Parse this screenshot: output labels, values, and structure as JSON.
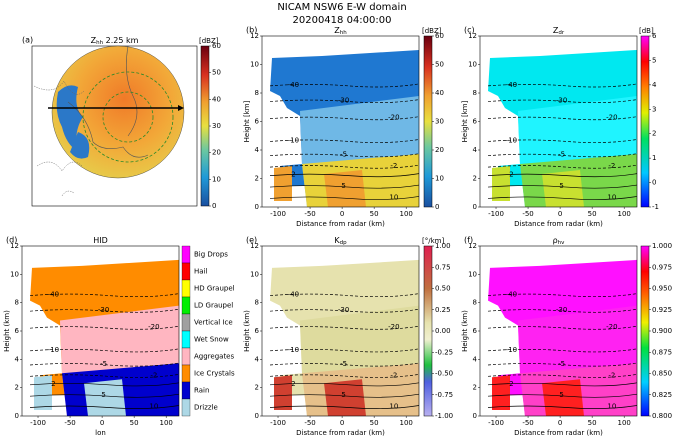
{
  "title": "NICAM NSW6 E-W domain",
  "subtitle": "20200418 04:00:00",
  "chart_data": [
    {
      "type": "map",
      "label": "(a)",
      "title": "Z",
      "title_sub": "hh",
      "title_rest": " 2.25 km",
      "colorbar": {
        "unit": "[dBZ]",
        "lim": [
          0,
          60
        ],
        "ticks": [
          0,
          10,
          20,
          30,
          40,
          50,
          60
        ]
      }
    },
    {
      "type": "cross-section",
      "label": "(b)",
      "title": "Z",
      "title_sub": "hh",
      "xlabel": "Distance from radar (km)",
      "ylabel": "Height [km]",
      "xlim": [
        -125,
        120
      ],
      "xticks": [
        -100,
        -50,
        0,
        50,
        100
      ],
      "ylim": [
        0,
        12
      ],
      "yticks": [
        0,
        2,
        4,
        6,
        8,
        10,
        12
      ],
      "contour_labels": [
        -40,
        -30,
        -20,
        -10,
        -5,
        -2,
        2,
        5,
        10
      ],
      "colorbar": {
        "unit": "[dBZ]",
        "lim": [
          0,
          60
        ],
        "ticks": [
          0,
          10,
          20,
          30,
          40,
          50,
          60
        ]
      }
    },
    {
      "type": "cross-section",
      "label": "(c)",
      "title": "Z",
      "title_sub": "dr",
      "xlabel": "Distance from radar (km)",
      "ylabel": "Height [km]",
      "xlim": [
        -125,
        120
      ],
      "xticks": [
        -100,
        -50,
        0,
        50,
        100
      ],
      "ylim": [
        0,
        12
      ],
      "yticks": [
        0,
        2,
        4,
        6,
        8,
        10,
        12
      ],
      "contour_labels": [
        -40,
        -30,
        -20,
        -10,
        -5,
        -2,
        2,
        5,
        10
      ],
      "colorbar": {
        "unit": "[dB]",
        "lim": [
          -1,
          6
        ],
        "ticks": [
          -1,
          0,
          1,
          2,
          3,
          4,
          5,
          6
        ]
      }
    },
    {
      "type": "cross-section",
      "label": "(d)",
      "title": "HID",
      "xlabel": "lon",
      "ylabel": "Height (km)",
      "xlim": [
        -125,
        120
      ],
      "xticks": [
        -100,
        -50,
        0,
        50,
        100
      ],
      "ylim": [
        0,
        12
      ],
      "yticks": [
        0,
        2,
        4,
        6,
        8,
        10,
        12
      ],
      "contour_labels": [
        -40,
        -30,
        -20,
        -10,
        -5,
        -2,
        2,
        5,
        10
      ],
      "colorbar": {
        "categories": [
          "Big Drops",
          "Hail",
          "HD Graupel",
          "LD Graupel",
          "Vertical Ice",
          "Wet Snow",
          "Aggregates",
          "Ice Crystals",
          "Rain",
          "Drizzle"
        ],
        "colors": [
          "#ff00ff",
          "#ff0000",
          "#ffff00",
          "#00ee00",
          "#a0a0a0",
          "#00ffff",
          "#ffb6c1",
          "#ff8c00",
          "#0000cd",
          "#add8e6"
        ]
      }
    },
    {
      "type": "cross-section",
      "label": "(e)",
      "title": "K",
      "title_sub": "dp",
      "xlabel": "Distance from radar (km)",
      "ylabel": "Height (km)",
      "xlim": [
        -125,
        120
      ],
      "xticks": [
        -100,
        -50,
        0,
        50,
        100
      ],
      "ylim": [
        0,
        12
      ],
      "yticks": [
        0,
        2,
        4,
        6,
        8,
        10,
        12
      ],
      "contour_labels": [
        -40,
        -30,
        -20,
        -10,
        -5,
        -2,
        2,
        5,
        10
      ],
      "colorbar": {
        "unit": "[°/km]",
        "lim": [
          -1,
          1
        ],
        "ticks": [
          {
            "value": -1,
            "label": "-1.00"
          },
          {
            "value": -0.75,
            "label": "-0.75"
          },
          {
            "value": -0.5,
            "label": "-0.50"
          },
          {
            "value": -0.25,
            "label": "-0.25"
          },
          {
            "value": 0,
            "label": "0.00"
          },
          {
            "value": 0.25,
            "label": "0.25"
          },
          {
            "value": 0.5,
            "label": "0.50"
          },
          {
            "value": 0.75,
            "label": "0.75"
          },
          {
            "value": 1,
            "label": "1.00"
          }
        ]
      }
    },
    {
      "type": "cross-section",
      "label": "(f)",
      "title": "ρ",
      "title_sub": "hv",
      "xlabel": "Distance from radar (km)",
      "ylabel": "Height (km)",
      "xlim": [
        -125,
        120
      ],
      "xticks": [
        -100,
        -50,
        0,
        50,
        100
      ],
      "ylim": [
        0,
        12
      ],
      "yticks": [
        0,
        2,
        4,
        6,
        8,
        10,
        12
      ],
      "contour_labels": [
        -40,
        -30,
        -20,
        -10,
        -5,
        -2,
        2,
        5,
        10
      ],
      "colorbar": {
        "lim": [
          0.8,
          1.0
        ],
        "ticks": [
          {
            "value": 0.8,
            "label": "0.800"
          },
          {
            "value": 0.825,
            "label": "0.825"
          },
          {
            "value": 0.85,
            "label": "0.850"
          },
          {
            "value": 0.875,
            "label": "0.875"
          },
          {
            "value": 0.9,
            "label": "0.900"
          },
          {
            "value": 0.925,
            "label": "0.925"
          },
          {
            "value": 0.95,
            "label": "0.950"
          },
          {
            "value": 0.975,
            "label": "0.975"
          },
          {
            "value": 1.0,
            "label": "1.000"
          }
        ]
      }
    }
  ]
}
